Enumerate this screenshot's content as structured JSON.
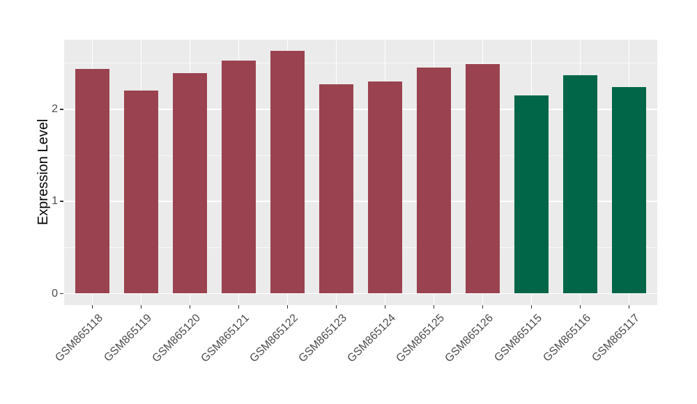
{
  "figure": {
    "background": "#FFFFFF",
    "panel_background": "#EBEBEB",
    "gridline_color": "#FFFFFF",
    "tick_color": "#333333",
    "tick_label_color": "#4D4D4D",
    "axis_title_color": "#000000"
  },
  "chart_data": {
    "type": "bar",
    "title": "",
    "xlabel": "",
    "ylabel": "Expression Level",
    "categories": [
      "GSM865118",
      "GSM865119",
      "GSM865120",
      "GSM865121",
      "GSM865122",
      "GSM865123",
      "GSM865124",
      "GSM865125",
      "GSM865126",
      "GSM865115",
      "GSM865116",
      "GSM865117"
    ],
    "values": [
      2.44,
      2.2,
      2.39,
      2.53,
      2.63,
      2.27,
      2.3,
      2.45,
      2.49,
      2.15,
      2.37,
      2.24
    ],
    "bar_groups": [
      "red",
      "red",
      "red",
      "red",
      "red",
      "red",
      "red",
      "red",
      "red",
      "green",
      "green",
      "green"
    ],
    "group_colors": {
      "red": "#9A424F",
      "green": "#006647"
    },
    "yticks": [
      {
        "value": 0,
        "label": "0"
      },
      {
        "value": 1,
        "label": "1"
      },
      {
        "value": 2,
        "label": "2"
      }
    ],
    "minor_gridlines": [
      0.5,
      1.5,
      2.5
    ],
    "ylim": [
      -0.13,
      2.75
    ],
    "grid": "on",
    "legend": "none"
  }
}
